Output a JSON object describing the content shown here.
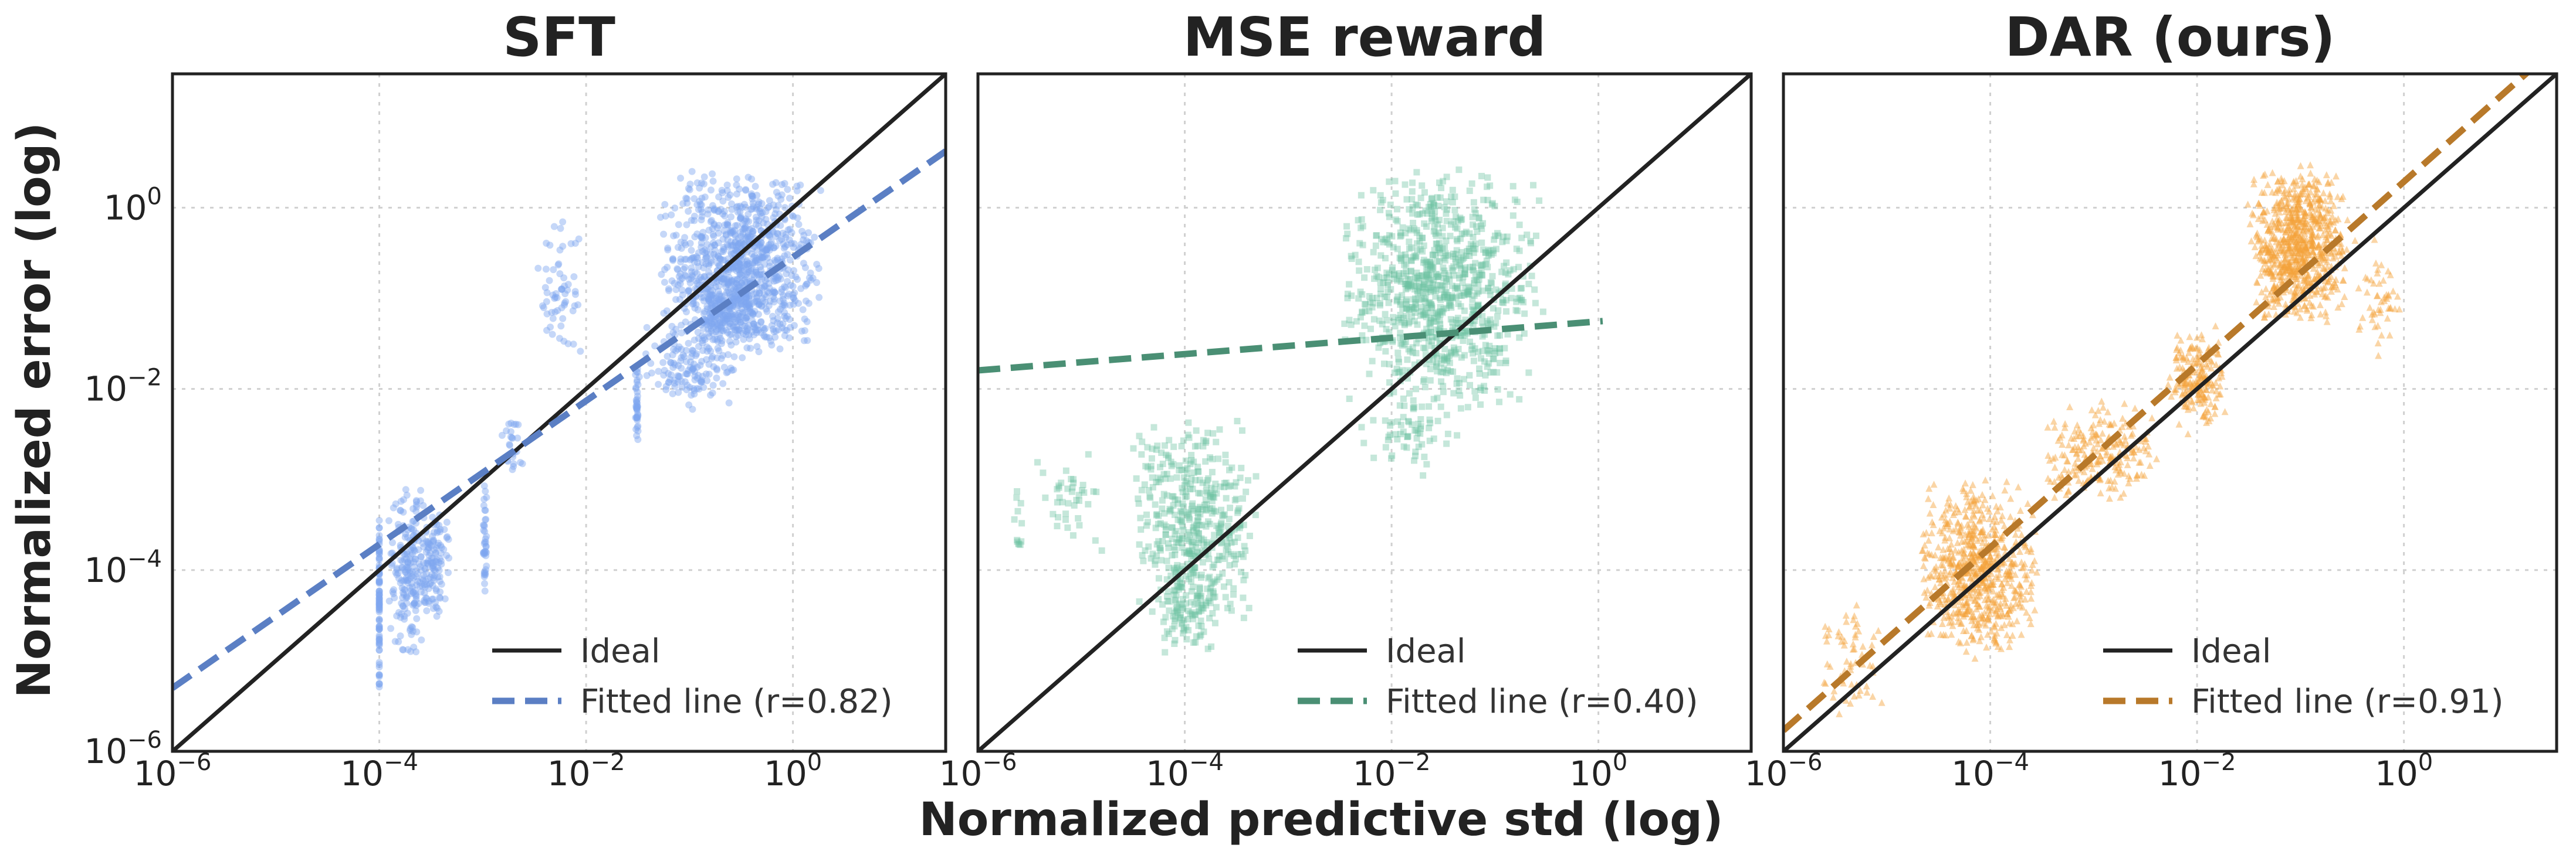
{
  "figure": {
    "xlabel": "Normalized predictive std (log)",
    "ylabel": "Normalized error (log)"
  },
  "chart_data": [
    {
      "type": "scatter",
      "title": "SFT",
      "x_scale": "log",
      "y_scale": "log",
      "xlim": [
        1e-06,
        30
      ],
      "ylim": [
        1e-06,
        30
      ],
      "grid": true,
      "legend_position": "lower-right",
      "x_ticks": [
        1e-06,
        0.0001,
        0.01,
        1
      ],
      "y_ticks": [
        1e-06,
        0.0001,
        0.01,
        1
      ],
      "point_color": "#7fa6f0",
      "fit_color": "#5b7fc4",
      "series": [
        {
          "name": "Ideal",
          "kind": "line",
          "points": [
            [
              1e-06,
              1e-06
            ],
            [
              30,
              30
            ]
          ],
          "color": "#222222"
        },
        {
          "name": "Fitted line (r=0.82)",
          "kind": "dashed-line",
          "points": [
            [
              1e-06,
              5e-06
            ],
            [
              30,
              4.2
            ]
          ],
          "color": "#5b7fc4"
        }
      ],
      "scatter_clusters": [
        {
          "x": [
            0.0001,
            0.0001
          ],
          "y": [
            3e-06,
            0.0005
          ],
          "n": 90
        },
        {
          "x": [
            0.00012,
            0.00035
          ],
          "y": [
            1e-05,
            0.001
          ],
          "n": 220
        },
        {
          "x": [
            0.00025,
            0.0005
          ],
          "y": [
            3e-05,
            0.0005
          ],
          "n": 90
        },
        {
          "x": [
            0.001,
            0.0011
          ],
          "y": [
            5e-05,
            0.001
          ],
          "n": 40
        },
        {
          "x": [
            0.0015,
            0.0025
          ],
          "y": [
            0.001,
            0.005
          ],
          "n": 25
        },
        {
          "x": [
            0.003,
            0.01
          ],
          "y": [
            0.02,
            1
          ],
          "n": 60
        },
        {
          "x": [
            0.03,
            0.032
          ],
          "y": [
            0.002,
            0.02
          ],
          "n": 40
        },
        {
          "x": [
            0.03,
            0.3
          ],
          "y": [
            0.005,
            0.05
          ],
          "n": 140
        },
        {
          "x": [
            0.05,
            2.0
          ],
          "y": [
            0.02,
            3.0
          ],
          "n": 900
        },
        {
          "x": [
            0.1,
            0.6
          ],
          "y": [
            0.03,
            0.2
          ],
          "n": 200
        }
      ]
    },
    {
      "type": "scatter",
      "title": "MSE reward",
      "x_scale": "log",
      "y_scale": "log",
      "xlim": [
        1e-06,
        30
      ],
      "ylim": [
        1e-06,
        30
      ],
      "grid": true,
      "legend_position": "lower-right",
      "x_ticks": [
        1e-06,
        0.0001,
        0.01,
        1
      ],
      "y_ticks": [
        1e-06,
        0.0001,
        0.01,
        1
      ],
      "point_color": "#6fc2a2",
      "fit_color": "#4a8f74",
      "series": [
        {
          "name": "Ideal",
          "kind": "line",
          "points": [
            [
              1e-06,
              1e-06
            ],
            [
              30,
              30
            ]
          ],
          "color": "#222222"
        },
        {
          "name": "Fitted line (r=0.40)",
          "kind": "dashed-line",
          "points": [
            [
              1e-06,
              0.016
            ],
            [
              1.1,
              0.056
            ]
          ],
          "color": "#4a8f74"
        }
      ],
      "scatter_clusters": [
        {
          "x": [
            2e-06,
            3e-06
          ],
          "y": [
            0.0001,
            0.001
          ],
          "n": 12
        },
        {
          "x": [
            3e-06,
            2e-05
          ],
          "y": [
            0.0001,
            0.003
          ],
          "n": 40
        },
        {
          "x": [
            3e-05,
            0.0005
          ],
          "y": [
            2e-05,
            0.005
          ],
          "n": 450
        },
        {
          "x": [
            5e-05,
            0.0002
          ],
          "y": [
            1e-05,
            0.0001
          ],
          "n": 80
        },
        {
          "x": [
            0.003,
            0.3
          ],
          "y": [
            0.005,
            3.0
          ],
          "n": 900
        },
        {
          "x": [
            0.005,
            0.05
          ],
          "y": [
            0.001,
            0.01
          ],
          "n": 60
        }
      ]
    },
    {
      "type": "scatter",
      "title": "DAR (ours)",
      "x_scale": "log",
      "y_scale": "log",
      "xlim": [
        1e-06,
        30
      ],
      "ylim": [
        1e-06,
        30
      ],
      "grid": true,
      "legend_position": "lower-right",
      "x_ticks": [
        1e-06,
        0.0001,
        0.01,
        1
      ],
      "y_ticks": [
        1e-06,
        0.0001,
        0.01,
        1
      ],
      "point_color": "#f5a23a",
      "fit_color": "#b8792a",
      "series": [
        {
          "name": "Ideal",
          "kind": "line",
          "points": [
            [
              1e-06,
              1e-06
            ],
            [
              30,
              30
            ]
          ],
          "color": "#222222"
        },
        {
          "name": "Fitted line (r=0.91)",
          "kind": "dashed-line",
          "points": [
            [
              1e-06,
              1.7e-06
            ],
            [
              30,
              60
            ]
          ],
          "color": "#b8792a"
        }
      ],
      "scatter_clusters": [
        {
          "x": [
            2e-06,
            1e-05
          ],
          "y": [
            2e-06,
            5e-05
          ],
          "n": 60
        },
        {
          "x": [
            2e-05,
            0.0003
          ],
          "y": [
            1e-05,
            0.001
          ],
          "n": 700
        },
        {
          "x": [
            0.0003,
            0.005
          ],
          "y": [
            0.0005,
            0.008
          ],
          "n": 220
        },
        {
          "x": [
            0.005,
            0.02
          ],
          "y": [
            0.003,
            0.05
          ],
          "n": 200
        },
        {
          "x": [
            0.03,
            0.3
          ],
          "y": [
            0.05,
            3.0
          ],
          "n": 800
        },
        {
          "x": [
            0.3,
            1.0
          ],
          "y": [
            0.02,
            0.5
          ],
          "n": 50
        }
      ]
    }
  ]
}
